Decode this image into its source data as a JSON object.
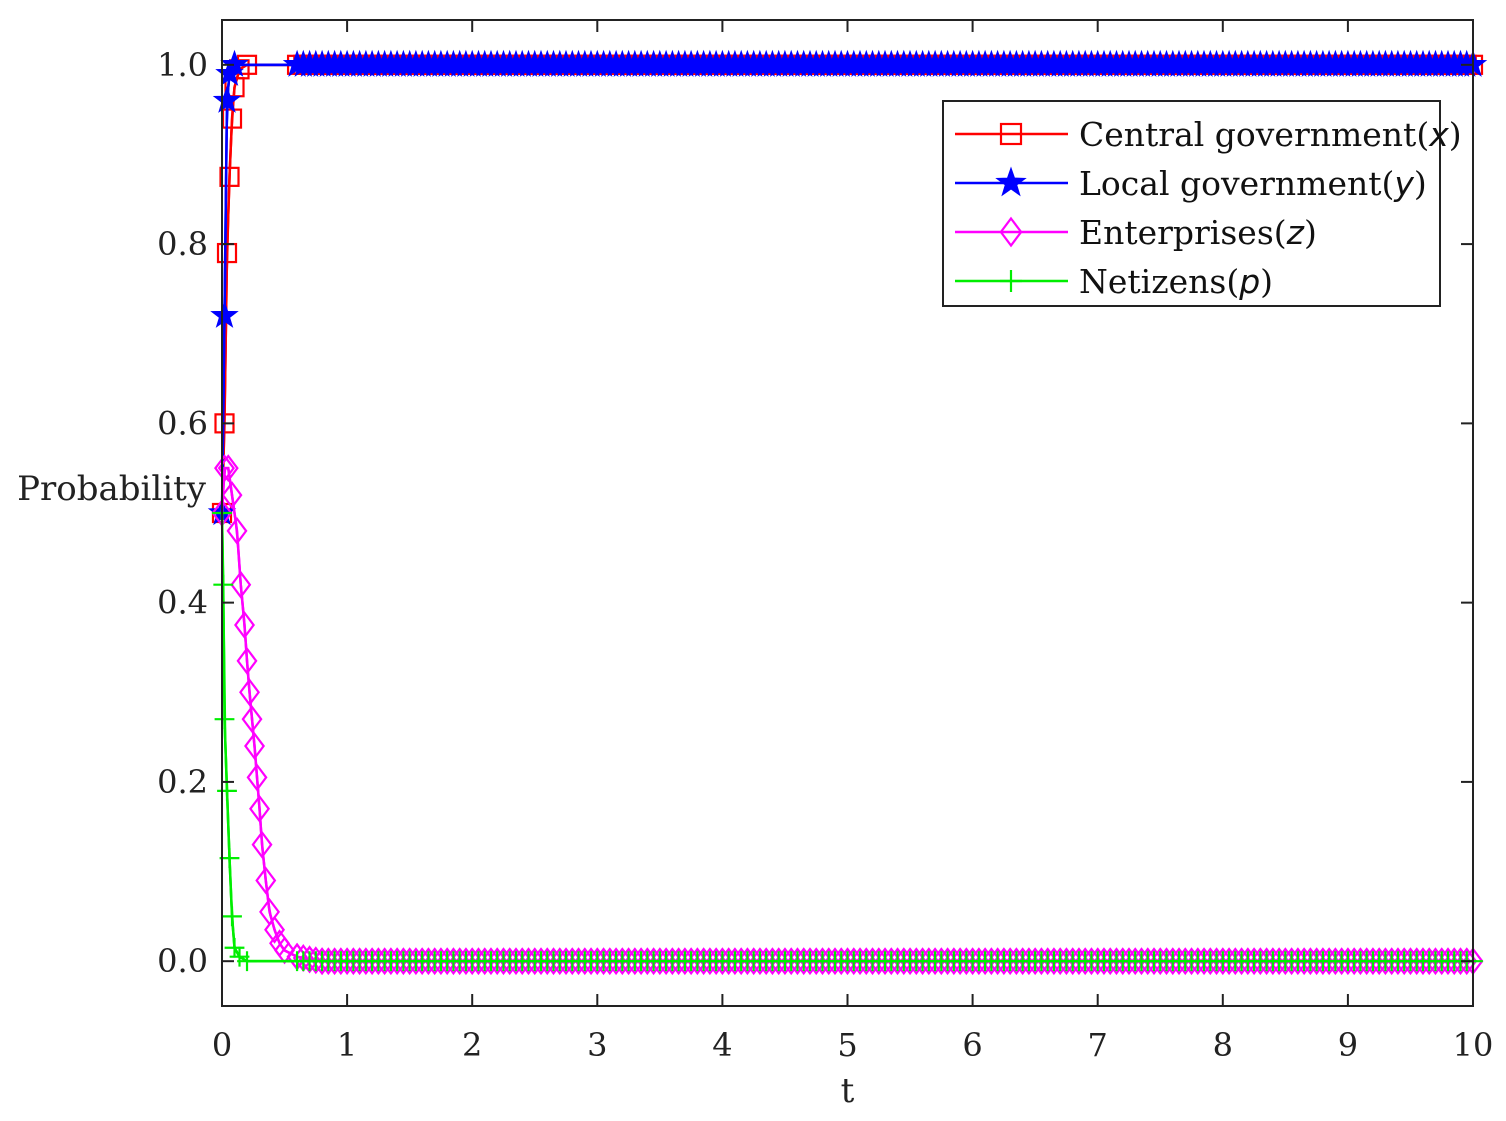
{
  "chart_data": {
    "type": "line",
    "title": "",
    "xlabel": "t",
    "ylabel": "Probability",
    "xlim": [
      0,
      10
    ],
    "ylim": [
      -0.05,
      1.05
    ],
    "xticks": [
      "0",
      "1",
      "2",
      "3",
      "4",
      "5",
      "6",
      "7",
      "8",
      "9",
      "10"
    ],
    "yticks": [
      "0.0",
      "0.2",
      "0.4",
      "0.6",
      "0.8",
      "1.0"
    ],
    "grid": false,
    "legend_position": "top-right",
    "series": [
      {
        "name": "Central government(x)",
        "label_text": "Central government(",
        "label_var": "x",
        "label_close": ")",
        "color": "#ff0000",
        "marker": "square",
        "points": [
          [
            0,
            0.5
          ],
          [
            0.02,
            0.6
          ],
          [
            0.04,
            0.79
          ],
          [
            0.06,
            0.875
          ],
          [
            0.08,
            0.94
          ],
          [
            0.1,
            0.975
          ],
          [
            0.14,
            0.995
          ],
          [
            0.2,
            1.0
          ],
          [
            10,
            1.0
          ]
        ]
      },
      {
        "name": "Local government(y)",
        "label_text": "Local government(",
        "label_var": "y",
        "label_close": ")",
        "color": "#0000ff",
        "marker": "star",
        "points": [
          [
            0,
            0.5
          ],
          [
            0.02,
            0.72
          ],
          [
            0.04,
            0.96
          ],
          [
            0.06,
            0.99
          ],
          [
            0.1,
            1.0
          ],
          [
            10,
            1.0
          ]
        ]
      },
      {
        "name": "Enterprises(z)",
        "label_text": "Enterprises(",
        "label_var": "z",
        "label_close": ")",
        "color": "#ff00ff",
        "marker": "diamond",
        "points": [
          [
            0,
            0.5
          ],
          [
            0.02,
            0.55
          ],
          [
            0.05,
            0.55
          ],
          [
            0.08,
            0.52
          ],
          [
            0.12,
            0.48
          ],
          [
            0.15,
            0.42
          ],
          [
            0.18,
            0.375
          ],
          [
            0.2,
            0.335
          ],
          [
            0.22,
            0.3
          ],
          [
            0.24,
            0.27
          ],
          [
            0.26,
            0.24
          ],
          [
            0.28,
            0.205
          ],
          [
            0.3,
            0.17
          ],
          [
            0.32,
            0.13
          ],
          [
            0.35,
            0.09
          ],
          [
            0.38,
            0.055
          ],
          [
            0.42,
            0.035
          ],
          [
            0.46,
            0.02
          ],
          [
            0.5,
            0.012
          ],
          [
            0.6,
            0.005
          ],
          [
            0.7,
            0.002
          ],
          [
            0.8,
            0.0
          ],
          [
            10,
            0.0
          ]
        ]
      },
      {
        "name": "Netizens(p)",
        "label_text": "Netizens(",
        "label_var": "p",
        "label_close": ")",
        "color": "#00ee00",
        "marker": "plus",
        "points": [
          [
            0,
            0.5
          ],
          [
            0.01,
            0.42
          ],
          [
            0.02,
            0.27
          ],
          [
            0.04,
            0.19
          ],
          [
            0.06,
            0.115
          ],
          [
            0.08,
            0.05
          ],
          [
            0.1,
            0.015
          ],
          [
            0.14,
            0.005
          ],
          [
            0.2,
            0.0
          ],
          [
            10,
            0.0
          ]
        ]
      }
    ]
  }
}
